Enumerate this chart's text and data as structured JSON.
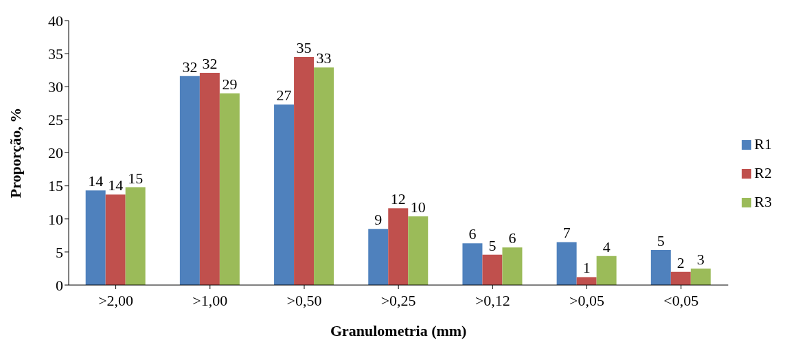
{
  "chart_data": {
    "type": "bar",
    "xlabel": "Granulometria  (mm)",
    "ylabel": "Proporção, %",
    "categories": [
      ">2,00",
      ">1,00",
      ">0,50",
      ">0,25",
      ">0,12",
      ">0,05",
      "<0,05"
    ],
    "series": [
      {
        "name": "R1",
        "color": "#4f81bd",
        "values": [
          14.3,
          31.6,
          27.3,
          8.5,
          6.3,
          6.5,
          5.3
        ],
        "value_labels": [
          "14",
          "32",
          "27",
          "9",
          "6",
          "7",
          "5"
        ]
      },
      {
        "name": "R2",
        "color": "#c0504d",
        "values": [
          13.7,
          32.1,
          34.5,
          11.6,
          4.6,
          1.2,
          2.0
        ],
        "value_labels": [
          "14",
          "32",
          "35",
          "12",
          "5",
          "1",
          "2"
        ]
      },
      {
        "name": "R3",
        "color": "#9bbb59",
        "values": [
          14.8,
          29.0,
          32.9,
          10.4,
          5.7,
          4.4,
          2.5
        ],
        "value_labels": [
          "15",
          "29",
          "33",
          "10",
          "6",
          "4",
          "3"
        ]
      }
    ],
    "ylim": [
      0,
      40
    ],
    "yticks": [
      0,
      5,
      10,
      15,
      20,
      25,
      30,
      35,
      40
    ],
    "grid": false,
    "legend": "right"
  }
}
